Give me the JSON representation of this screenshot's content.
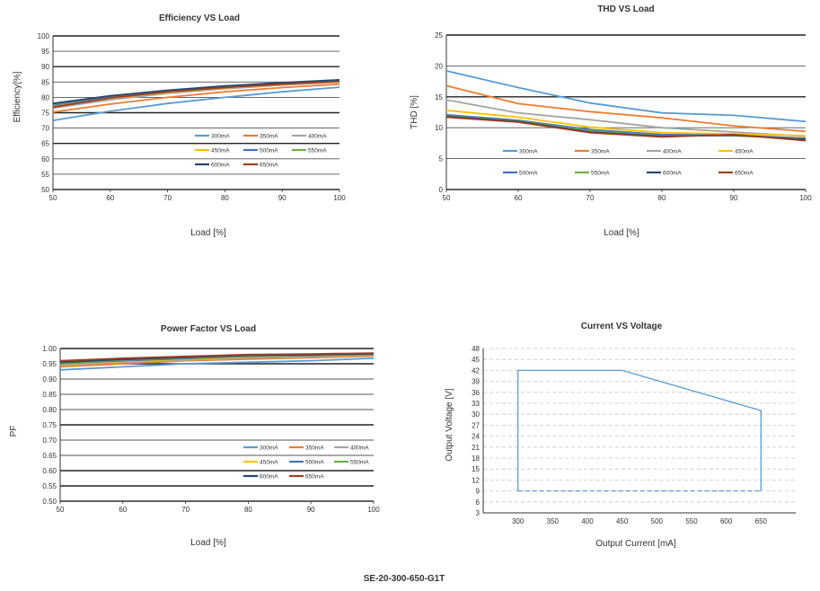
{
  "footer": "SE-20-300-650-G1T",
  "colors": {
    "300mA": "#5b9bd5",
    "350mA": "#ed7d31",
    "400mA": "#a5a5a5",
    "450mA": "#ffc000",
    "500mA": "#4472c4",
    "550mA": "#70ad47",
    "600mA": "#264478",
    "650mA": "#9e3e1e"
  },
  "chart_data": [
    {
      "id": "efficiency",
      "type": "line",
      "title": "Efficiency VS Load",
      "xlabel": "Load [%]",
      "ylabel": "Efficiency[%]",
      "x": [
        50,
        60,
        70,
        80,
        90,
        100
      ],
      "xticks": [
        "50",
        "60",
        "70",
        "80",
        "90",
        "100"
      ],
      "ylim": [
        50,
        100
      ],
      "yticks": [
        "50",
        "55",
        "60",
        "65",
        "70",
        "75",
        "80",
        "85",
        "90",
        "95",
        "100"
      ],
      "legend": "bottom-right",
      "series": [
        {
          "name": "300mA",
          "values": [
            72.5,
            75.5,
            78,
            80,
            81.8,
            83.3
          ]
        },
        {
          "name": "350mA",
          "values": [
            75.2,
            77.8,
            80,
            81.8,
            83.2,
            84.3
          ]
        },
        {
          "name": "400mA",
          "values": [
            76.5,
            79.2,
            81.3,
            82.8,
            84,
            85
          ]
        },
        {
          "name": "450mA",
          "values": [
            77,
            79.7,
            81.7,
            83.1,
            84.2,
            85.2
          ]
        },
        {
          "name": "500mA",
          "values": [
            77.5,
            80.2,
            82,
            83.4,
            84.5,
            85.4
          ]
        },
        {
          "name": "550mA",
          "values": [
            77.8,
            80.4,
            82.2,
            83.6,
            84.7,
            85.6
          ]
        },
        {
          "name": "600mA",
          "values": [
            78,
            80.5,
            82.3,
            83.7,
            84.8,
            85.7
          ]
        },
        {
          "name": "650mA",
          "values": [
            76.8,
            79.8,
            81.8,
            83.2,
            84.3,
            85.2
          ]
        }
      ]
    },
    {
      "id": "thd",
      "type": "line",
      "title": "THD VS Load",
      "xlabel": "Load [%]",
      "ylabel": "THD [%]",
      "x": [
        50,
        60,
        70,
        80,
        90,
        100
      ],
      "xticks": [
        "50",
        "60",
        "70",
        "80",
        "90",
        "100"
      ],
      "ylim": [
        0,
        25
      ],
      "yticks": [
        "0",
        "5",
        "10",
        "15",
        "20",
        "25"
      ],
      "legend": "center",
      "series": [
        {
          "name": "300mA",
          "values": [
            19.2,
            16.5,
            14,
            12.4,
            12,
            11
          ]
        },
        {
          "name": "350mA",
          "values": [
            16.8,
            13.9,
            12.6,
            11.6,
            10.3,
            9.4
          ]
        },
        {
          "name": "400mA",
          "values": [
            14.5,
            12.4,
            11.3,
            10,
            9.3,
            8.6
          ]
        },
        {
          "name": "450mA",
          "values": [
            12.8,
            11.7,
            10.1,
            9.2,
            9,
            8.7
          ]
        },
        {
          "name": "500mA",
          "values": [
            12.1,
            11.2,
            9.7,
            8.9,
            8.8,
            8.3
          ]
        },
        {
          "name": "550mA",
          "values": [
            11.9,
            11.1,
            9.5,
            8.7,
            8.7,
            8.2
          ]
        },
        {
          "name": "600mA",
          "values": [
            11.8,
            11,
            9.3,
            8.6,
            8.8,
            8.1
          ]
        },
        {
          "name": "650mA",
          "values": [
            11.7,
            10.9,
            9.2,
            8.5,
            8.9,
            7.9
          ]
        }
      ]
    },
    {
      "id": "pf",
      "type": "line",
      "title": "Power Factor VS Load",
      "xlabel": "Load [%]",
      "ylabel": "PF",
      "x": [
        50,
        60,
        70,
        80,
        90,
        100
      ],
      "xticks": [
        "50",
        "60",
        "70",
        "80",
        "90",
        "100"
      ],
      "ylim": [
        0.5,
        1.0
      ],
      "yticks": [
        "0.50",
        "0.55",
        "0.60",
        "0.65",
        "0.70",
        "0.75",
        "0.80",
        "0.85",
        "0.90",
        "0.95",
        "1.00"
      ],
      "legend": "bottom-right",
      "series": [
        {
          "name": "300mA",
          "values": [
            0.93,
            0.94,
            0.95,
            0.955,
            0.96,
            0.968
          ]
        },
        {
          "name": "350mA",
          "values": [
            0.94,
            0.95,
            0.96,
            0.965,
            0.97,
            0.975
          ]
        },
        {
          "name": "400mA",
          "values": [
            0.945,
            0.955,
            0.962,
            0.97,
            0.973,
            0.978
          ]
        },
        {
          "name": "450mA",
          "values": [
            0.948,
            0.958,
            0.965,
            0.972,
            0.975,
            0.98
          ]
        },
        {
          "name": "500mA",
          "values": [
            0.95,
            0.96,
            0.967,
            0.974,
            0.977,
            0.981
          ]
        },
        {
          "name": "550mA",
          "values": [
            0.952,
            0.962,
            0.969,
            0.976,
            0.979,
            0.982
          ]
        },
        {
          "name": "600mA",
          "values": [
            0.955,
            0.964,
            0.971,
            0.978,
            0.98,
            0.983
          ]
        },
        {
          "name": "650mA",
          "values": [
            0.96,
            0.968,
            0.974,
            0.98,
            0.982,
            0.985
          ]
        }
      ]
    },
    {
      "id": "cv",
      "type": "line",
      "title": "Current VS Voltage",
      "xlabel": "Output Current [mA]",
      "ylabel": "Output Voltage [V]",
      "xlim": [
        250,
        700
      ],
      "ylim": [
        3,
        48
      ],
      "xticks": [
        "300",
        "350",
        "400",
        "450",
        "500",
        "550",
        "600",
        "650"
      ],
      "yticks": [
        "3",
        "6",
        "9",
        "12",
        "15",
        "18",
        "21",
        "24",
        "27",
        "30",
        "33",
        "36",
        "39",
        "42",
        "45",
        "48"
      ],
      "outline": {
        "x": [
          300,
          300,
          450,
          650,
          650,
          300
        ],
        "y": [
          42,
          9,
          9,
          9,
          31,
          42
        ]
      },
      "boundary_top": {
        "x": [
          300,
          450,
          650
        ],
        "y": [
          42,
          42,
          31
        ]
      }
    }
  ]
}
